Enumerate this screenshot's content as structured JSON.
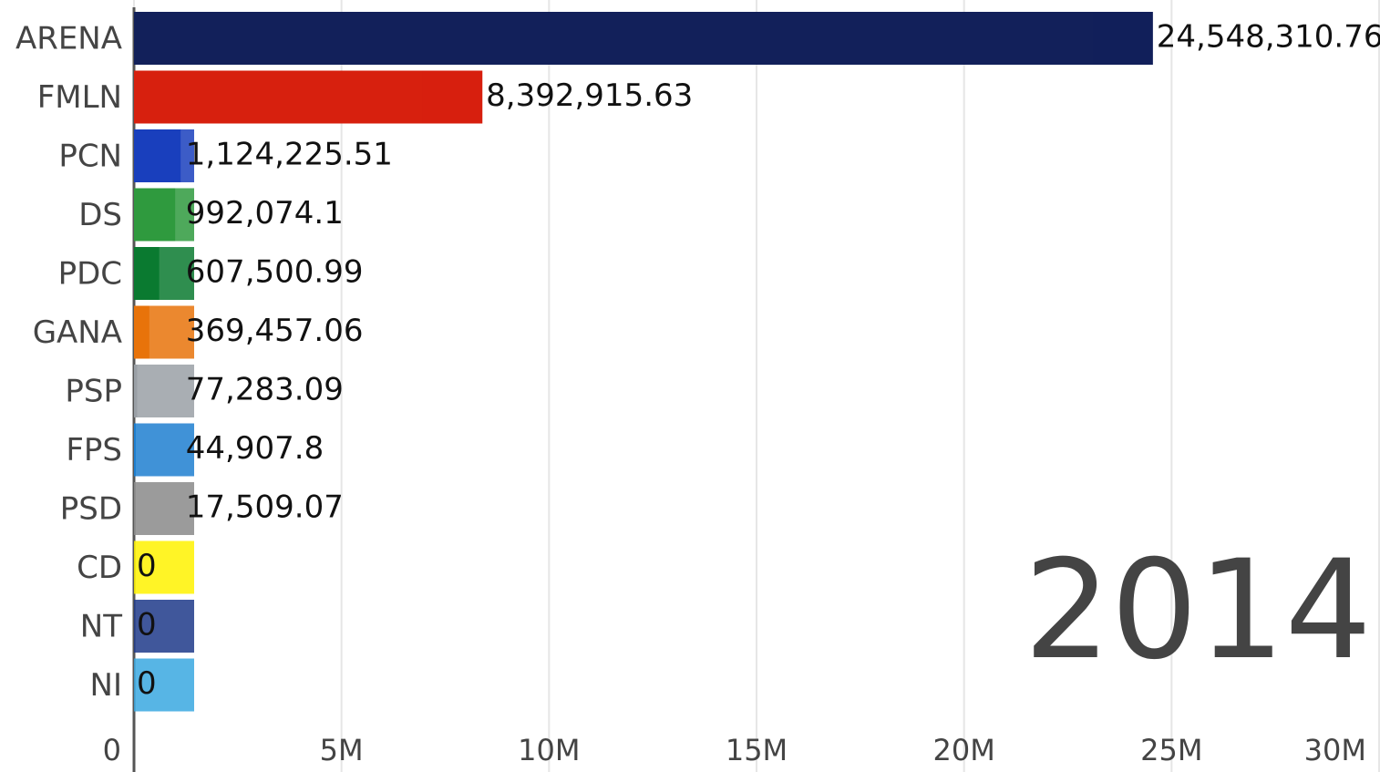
{
  "chart_data": {
    "type": "bar",
    "orientation": "horizontal",
    "categories": [
      "ARENA",
      "FMLN",
      "PCN",
      "DS",
      "PDC",
      "GANA",
      "PSP",
      "FPS",
      "PSD",
      "CD",
      "NT",
      "NI"
    ],
    "values": [
      24548310.76,
      8392915.63,
      1124225.51,
      992074.1,
      607500.99,
      369457.06,
      77283.09,
      44907.8,
      17509.07,
      0,
      0,
      0
    ],
    "value_labels": [
      "24,548,310.76",
      "8,392,915.63",
      "1,124,225.51",
      "992,074.1",
      "607,500.99",
      "369,457.06",
      "77,283.09",
      "44,907.8",
      "17,509.07",
      "0",
      "0",
      "0"
    ],
    "colors": [
      "#12205a",
      "#d7200e",
      "#1a3fbd",
      "#2f9a3e",
      "#0a7a30",
      "#e8730a",
      "#9aa0a6",
      "#1e7fd0",
      "#8a8a8a",
      "#fff200",
      "#1e3a8a",
      "#39a8e0"
    ],
    "xlim": [
      0,
      30000000
    ],
    "xticks": [
      0,
      {
        "value": 5000000,
        "label": "5M"
      },
      {
        "value": 10000000,
        "label": "10M"
      },
      {
        "value": 15000000,
        "label": "15M"
      },
      {
        "value": 20000000,
        "label": "20M"
      },
      {
        "value": 25000000,
        "label": "25M"
      },
      {
        "value": 30000000,
        "label": "30M"
      }
    ],
    "grid": true,
    "annotation": "2014"
  }
}
